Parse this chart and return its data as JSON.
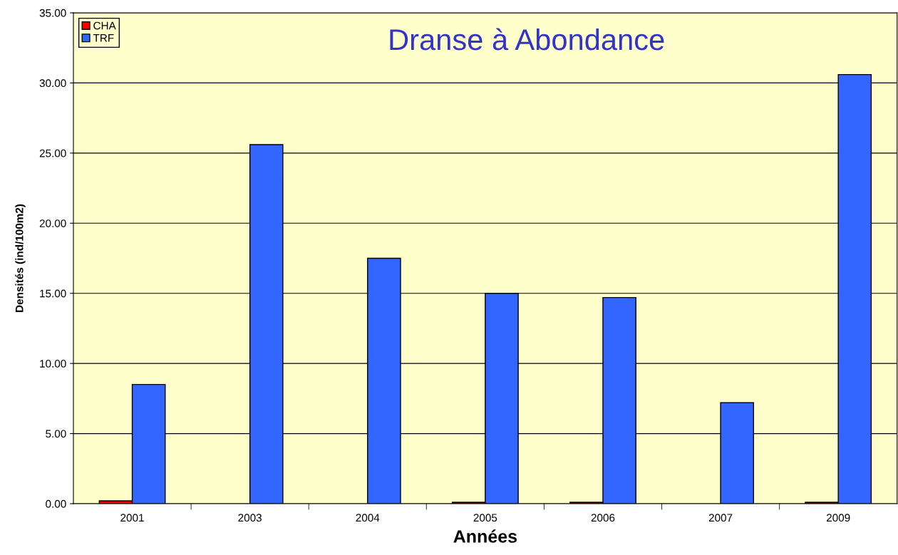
{
  "chart_data": {
    "type": "bar",
    "title": "Dranse à Abondance",
    "xlabel": "Années",
    "ylabel": "Densités (ind/100m2)",
    "categories": [
      "2001",
      "2003",
      "2004",
      "2005",
      "2006",
      "2007",
      "2009"
    ],
    "series": [
      {
        "name": "CHA",
        "color": "#ff0000",
        "values": [
          0.2,
          null,
          null,
          0.1,
          0.1,
          null,
          0.1
        ]
      },
      {
        "name": "TRF",
        "color": "#3366ff",
        "values": [
          8.5,
          25.6,
          17.5,
          15.0,
          14.7,
          7.2,
          30.6
        ]
      }
    ],
    "ylim": [
      0,
      35
    ],
    "yticks": [
      {
        "value": 0,
        "label": "0.00"
      },
      {
        "value": 5,
        "label": "5.00"
      },
      {
        "value": 10,
        "label": "10.00"
      },
      {
        "value": 15,
        "label": "15.00"
      },
      {
        "value": 20,
        "label": "20.00"
      },
      {
        "value": 25,
        "label": "25.00"
      },
      {
        "value": 30,
        "label": "30.00"
      },
      {
        "value": 35,
        "label": "35.00"
      }
    ],
    "grid": "y",
    "legend": "top left"
  }
}
